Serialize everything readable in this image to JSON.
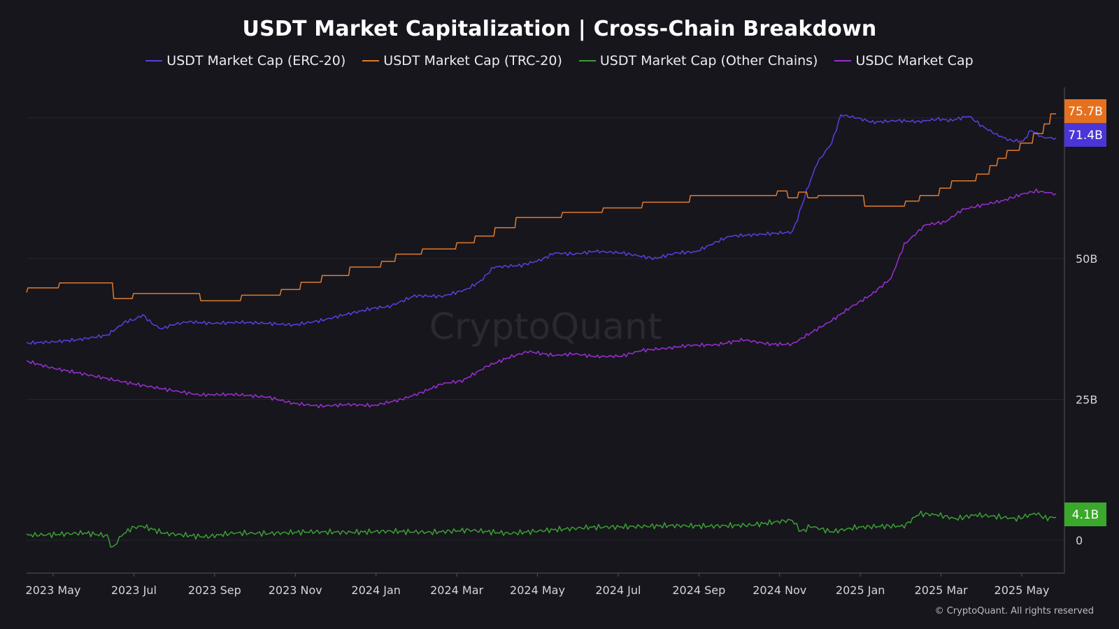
{
  "chart_data": {
    "type": "line",
    "title": "USDT Market Capitalization | Cross-Chain Breakdown",
    "watermark": "CryptoQuant",
    "copyright": "© CryptoQuant. All rights reserved",
    "x_ticks": [
      "2023 May",
      "2023 Jul",
      "2023 Sep",
      "2023 Nov",
      "2024 Jan",
      "2024 Mar",
      "2024 May",
      "2024 Jul",
      "2024 Sep",
      "2024 Nov",
      "2025 Jan",
      "2025 Mar",
      "2025 May"
    ],
    "y_ticks": [
      {
        "value": 0,
        "label": "0"
      },
      {
        "value": 25,
        "label": "25B"
      },
      {
        "value": 50,
        "label": "50B"
      }
    ],
    "ylim": [
      -6,
      80
    ],
    "x_range": [
      "2023-04-01",
      "2025-05-20"
    ],
    "grid": true,
    "legend_position": "top-center",
    "series": [
      {
        "name": "USDT Market Cap (ERC-20)",
        "color": "#5b3fe0",
        "last_label": "71.4B",
        "points": [
          [
            "2023-04-01",
            35.0
          ],
          [
            "2023-04-20",
            35.2
          ],
          [
            "2023-05-10",
            35.6
          ],
          [
            "2023-06-01",
            36.4
          ],
          [
            "2023-06-15",
            38.8
          ],
          [
            "2023-06-22",
            39.2
          ],
          [
            "2023-06-28",
            40.0
          ],
          [
            "2023-07-05",
            38.5
          ],
          [
            "2023-07-12",
            37.5
          ],
          [
            "2023-07-20",
            38.2
          ],
          [
            "2023-08-01",
            38.8
          ],
          [
            "2023-08-20",
            38.5
          ],
          [
            "2023-09-10",
            38.7
          ],
          [
            "2023-10-01",
            38.5
          ],
          [
            "2023-10-20",
            38.2
          ],
          [
            "2023-11-10",
            39.0
          ],
          [
            "2023-12-01",
            40.2
          ],
          [
            "2023-12-20",
            41.2
          ],
          [
            "2024-01-01",
            41.5
          ],
          [
            "2024-01-20",
            43.4
          ],
          [
            "2024-02-10",
            43.3
          ],
          [
            "2024-02-28",
            44.5
          ],
          [
            "2024-03-10",
            46.0
          ],
          [
            "2024-03-20",
            48.5
          ],
          [
            "2024-04-10",
            48.8
          ],
          [
            "2024-04-25",
            49.8
          ],
          [
            "2024-05-05",
            51.0
          ],
          [
            "2024-05-20",
            50.8
          ],
          [
            "2024-06-05",
            51.3
          ],
          [
            "2024-06-25",
            51.0
          ],
          [
            "2024-07-05",
            50.6
          ],
          [
            "2024-07-20",
            50.0
          ],
          [
            "2024-08-05",
            51.0
          ],
          [
            "2024-08-20",
            51.2
          ],
          [
            "2024-09-05",
            53.0
          ],
          [
            "2024-09-15",
            54.0
          ],
          [
            "2024-10-01",
            54.2
          ],
          [
            "2024-10-20",
            54.5
          ],
          [
            "2024-11-01",
            54.7
          ],
          [
            "2024-11-05",
            57.0
          ],
          [
            "2024-11-12",
            62.0
          ],
          [
            "2024-11-20",
            67.0
          ],
          [
            "2024-12-01",
            70.5
          ],
          [
            "2024-12-08",
            75.5
          ],
          [
            "2024-12-20",
            75.0
          ],
          [
            "2025-01-01",
            74.2
          ],
          [
            "2025-01-20",
            74.5
          ],
          [
            "2025-02-05",
            74.3
          ],
          [
            "2025-02-20",
            74.8
          ],
          [
            "2025-03-01",
            74.5
          ],
          [
            "2025-03-15",
            75.3
          ],
          [
            "2025-03-25",
            73.5
          ],
          [
            "2025-04-05",
            72.0
          ],
          [
            "2025-04-15",
            71.0
          ],
          [
            "2025-04-25",
            70.8
          ],
          [
            "2025-05-01",
            72.8
          ],
          [
            "2025-05-10",
            71.5
          ],
          [
            "2025-05-20",
            71.4
          ]
        ]
      },
      {
        "name": "USDT Market Cap (TRC-20)",
        "color": "#e07b2c",
        "last_label": "75.7B",
        "points": [
          [
            "2023-04-01",
            44.0
          ],
          [
            "2023-04-02",
            44.8
          ],
          [
            "2023-04-25",
            44.8
          ],
          [
            "2023-04-26",
            45.7
          ],
          [
            "2023-06-05",
            45.7
          ],
          [
            "2023-06-06",
            42.9
          ],
          [
            "2023-06-20",
            42.9
          ],
          [
            "2023-06-21",
            43.8
          ],
          [
            "2023-08-10",
            43.8
          ],
          [
            "2023-08-11",
            42.5
          ],
          [
            "2023-09-10",
            42.5
          ],
          [
            "2023-09-11",
            43.5
          ],
          [
            "2023-10-10",
            43.5
          ],
          [
            "2023-10-11",
            44.5
          ],
          [
            "2023-10-25",
            44.5
          ],
          [
            "2023-10-26",
            45.8
          ],
          [
            "2023-11-10",
            45.8
          ],
          [
            "2023-11-11",
            47.0
          ],
          [
            "2023-12-01",
            47.0
          ],
          [
            "2023-12-02",
            48.5
          ],
          [
            "2023-12-25",
            48.5
          ],
          [
            "2023-12-26",
            49.5
          ],
          [
            "2024-01-05",
            49.5
          ],
          [
            "2024-01-06",
            50.8
          ],
          [
            "2024-01-25",
            50.8
          ],
          [
            "2024-01-26",
            51.7
          ],
          [
            "2024-02-20",
            51.7
          ],
          [
            "2024-02-21",
            52.8
          ],
          [
            "2024-03-05",
            52.8
          ],
          [
            "2024-03-06",
            54.0
          ],
          [
            "2024-03-20",
            54.0
          ],
          [
            "2024-03-21",
            55.5
          ],
          [
            "2024-04-05",
            55.5
          ],
          [
            "2024-04-06",
            57.3
          ],
          [
            "2024-05-10",
            57.3
          ],
          [
            "2024-05-11",
            58.2
          ],
          [
            "2024-06-10",
            58.2
          ],
          [
            "2024-06-11",
            59.0
          ],
          [
            "2024-07-10",
            59.0
          ],
          [
            "2024-07-11",
            60.0
          ],
          [
            "2024-08-15",
            60.0
          ],
          [
            "2024-08-16",
            61.2
          ],
          [
            "2024-10-20",
            61.2
          ],
          [
            "2024-10-21",
            62.0
          ],
          [
            "2024-10-28",
            62.0
          ],
          [
            "2024-10-29",
            60.8
          ],
          [
            "2024-11-05",
            60.8
          ],
          [
            "2024-11-06",
            61.8
          ],
          [
            "2024-11-12",
            61.8
          ],
          [
            "2024-11-13",
            60.8
          ],
          [
            "2024-11-20",
            60.8
          ],
          [
            "2024-11-21",
            61.2
          ],
          [
            "2024-12-25",
            61.2
          ],
          [
            "2024-12-26",
            59.3
          ],
          [
            "2025-01-25",
            59.3
          ],
          [
            "2025-01-26",
            60.2
          ],
          [
            "2025-02-05",
            60.2
          ],
          [
            "2025-02-06",
            61.2
          ],
          [
            "2025-02-20",
            61.2
          ],
          [
            "2025-02-21",
            62.5
          ],
          [
            "2025-03-01",
            62.5
          ],
          [
            "2025-03-02",
            63.8
          ],
          [
            "2025-03-20",
            63.8
          ],
          [
            "2025-03-21",
            65.0
          ],
          [
            "2025-03-30",
            65.0
          ],
          [
            "2025-03-31",
            66.5
          ],
          [
            "2025-04-05",
            66.5
          ],
          [
            "2025-04-06",
            67.8
          ],
          [
            "2025-04-12",
            67.8
          ],
          [
            "2025-04-13",
            69.2
          ],
          [
            "2025-04-22",
            69.2
          ],
          [
            "2025-04-23",
            70.5
          ],
          [
            "2025-05-02",
            70.5
          ],
          [
            "2025-05-03",
            72.2
          ],
          [
            "2025-05-10",
            72.2
          ],
          [
            "2025-05-11",
            73.9
          ],
          [
            "2025-05-15",
            73.9
          ],
          [
            "2025-05-16",
            75.7
          ],
          [
            "2025-05-20",
            75.7
          ]
        ]
      },
      {
        "name": "USDT Market Cap (Other Chains)",
        "color": "#3aa032",
        "last_label": "4.1B",
        "points": [
          [
            "2023-04-01",
            0.9
          ],
          [
            "2023-04-20",
            1.0
          ],
          [
            "2023-05-15",
            1.3
          ],
          [
            "2023-06-01",
            0.8
          ],
          [
            "2023-06-05",
            -1.5
          ],
          [
            "2023-06-12",
            0.9
          ],
          [
            "2023-06-20",
            2.2
          ],
          [
            "2023-06-28",
            2.5
          ],
          [
            "2023-07-15",
            1.2
          ],
          [
            "2023-08-15",
            0.6
          ],
          [
            "2023-09-05",
            1.3
          ],
          [
            "2023-10-01",
            1.2
          ],
          [
            "2023-11-01",
            1.5
          ],
          [
            "2023-12-01",
            1.4
          ],
          [
            "2024-01-01",
            1.6
          ],
          [
            "2024-02-01",
            1.4
          ],
          [
            "2024-03-01",
            1.8
          ],
          [
            "2024-04-01",
            1.2
          ],
          [
            "2024-05-01",
            1.8
          ],
          [
            "2024-06-01",
            2.3
          ],
          [
            "2024-07-01",
            2.4
          ],
          [
            "2024-08-01",
            2.6
          ],
          [
            "2024-09-01",
            2.5
          ],
          [
            "2024-10-01",
            2.7
          ],
          [
            "2024-11-01",
            3.6
          ],
          [
            "2024-11-08",
            1.5
          ],
          [
            "2024-11-15",
            2.5
          ],
          [
            "2024-12-01",
            1.5
          ],
          [
            "2024-12-20",
            2.3
          ],
          [
            "2025-01-10",
            2.5
          ],
          [
            "2025-01-25",
            2.5
          ],
          [
            "2025-02-05",
            4.7
          ],
          [
            "2025-02-20",
            4.5
          ],
          [
            "2025-03-05",
            3.8
          ],
          [
            "2025-03-20",
            4.5
          ],
          [
            "2025-04-05",
            4.2
          ],
          [
            "2025-04-20",
            3.8
          ],
          [
            "2025-05-05",
            4.8
          ],
          [
            "2025-05-12",
            3.9
          ],
          [
            "2025-05-20",
            4.1
          ]
        ]
      },
      {
        "name": "USDC Market Cap",
        "color": "#9b2fd4",
        "last_label": "",
        "points": [
          [
            "2023-04-01",
            31.8
          ],
          [
            "2023-04-20",
            30.6
          ],
          [
            "2023-05-10",
            29.7
          ],
          [
            "2023-06-01",
            28.7
          ],
          [
            "2023-06-20",
            27.8
          ],
          [
            "2023-07-15",
            26.8
          ],
          [
            "2023-08-10",
            25.8
          ],
          [
            "2023-09-05",
            25.9
          ],
          [
            "2023-10-01",
            25.4
          ],
          [
            "2023-10-20",
            24.3
          ],
          [
            "2023-11-10",
            23.8
          ],
          [
            "2023-12-01",
            24.1
          ],
          [
            "2023-12-20",
            23.9
          ],
          [
            "2024-01-10",
            25.0
          ],
          [
            "2024-01-25",
            26.2
          ],
          [
            "2024-02-10",
            27.8
          ],
          [
            "2024-02-25",
            28.3
          ],
          [
            "2024-03-15",
            30.9
          ],
          [
            "2024-04-01",
            32.5
          ],
          [
            "2024-04-15",
            33.5
          ],
          [
            "2024-05-05",
            32.8
          ],
          [
            "2024-05-20",
            33.1
          ],
          [
            "2024-06-05",
            32.6
          ],
          [
            "2024-06-25",
            32.7
          ],
          [
            "2024-07-10",
            33.7
          ],
          [
            "2024-07-30",
            34.1
          ],
          [
            "2024-08-15",
            34.6
          ],
          [
            "2024-09-05",
            34.7
          ],
          [
            "2024-09-25",
            35.6
          ],
          [
            "2024-10-15",
            34.8
          ],
          [
            "2024-11-01",
            34.8
          ],
          [
            "2024-11-15",
            36.8
          ],
          [
            "2024-12-01",
            39.0
          ],
          [
            "2024-12-15",
            41.3
          ],
          [
            "2024-12-31",
            43.6
          ],
          [
            "2025-01-15",
            46.5
          ],
          [
            "2025-01-25",
            52.5
          ],
          [
            "2025-02-10",
            56.0
          ],
          [
            "2025-02-25",
            56.5
          ],
          [
            "2025-03-10",
            58.7
          ],
          [
            "2025-03-25",
            59.5
          ],
          [
            "2025-04-10",
            60.3
          ],
          [
            "2025-04-25",
            61.5
          ],
          [
            "2025-05-05",
            62.0
          ],
          [
            "2025-05-20",
            61.5
          ]
        ]
      }
    ]
  }
}
